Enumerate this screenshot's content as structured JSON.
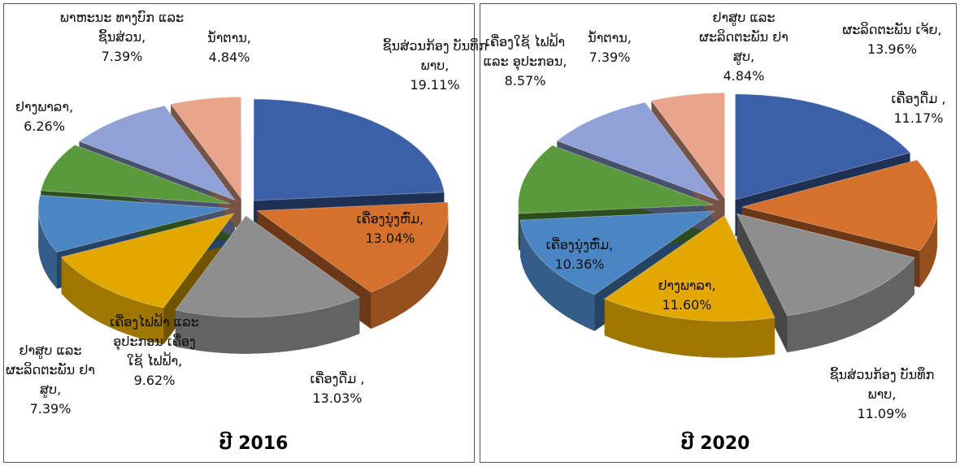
{
  "chart_data": [
    {
      "type": "pie3d",
      "title": "ປີ 2016",
      "categories": [
        "ຊິ້ນສ່ວນກ້ອງ ບັນທຶກພາບ,",
        "ເຄື່ອງນຸ່ງຫົ່ມ,",
        "ເຄື່ອງດື່ມ ,",
        "ເຄື່ອງໄຟຟ້າ ແລະ ອຸປະກອນ ເຄື່ອງໃຊ້ ໄຟຟ້າ,",
        "ຢາສູບ ແລະ ຜະລິດຕະພັນ ຢາສູບ,",
        "ຢາງພາລາ,",
        "ພາຫະນະ ທາງບົກ ແລະ ຊິ້ນສ່ວນ,",
        "ນ້ຳຕານ,"
      ],
      "values": [
        19.11,
        13.04,
        13.03,
        9.62,
        7.39,
        6.26,
        7.39,
        4.84
      ],
      "value_labels": [
        "19.11%",
        "13.04%",
        "13.03%",
        "9.62%",
        "7.39%",
        "6.26%",
        "7.39%",
        "4.84%"
      ],
      "colors": [
        "#3b60a8",
        "#d6712d",
        "#8e8e8e",
        "#e2a800",
        "#4a86c4",
        "#5a9a3c",
        "#8fa1d6",
        "#e9a58b"
      ]
    },
    {
      "type": "pie3d",
      "title": "ປີ 2020",
      "categories": [
        "ຜະລິດຕະພັນ ເຈ້ຍ,",
        "ເຄື່ອງດື່ມ ,",
        "ຊິ້ນສ່ວນກ້ອງ ບັນທຶກພາບ,",
        "ຢາງພາລາ,",
        "ເຄື່ອງນຸ່ງຫົ່ມ,",
        "ເຄື່ອງໃຊ້ ໄຟຟ້າ ແລະ ອຸປະກອນ,",
        "ນ້ຳຕານ,",
        "ຢາສູບ ແລະ ຜະລິດຕະພັນ ຢາສູບ,"
      ],
      "values": [
        13.96,
        11.17,
        11.09,
        11.6,
        10.36,
        8.57,
        7.39,
        4.84
      ],
      "value_labels": [
        "13.96%",
        "11.17%",
        "11.09%",
        "11.60%",
        "10.36%",
        "8.57%",
        "7.39%",
        "4.84%"
      ],
      "colors": [
        "#3b60a8",
        "#d6712d",
        "#8e8e8e",
        "#e2a800",
        "#4a86c4",
        "#5a9a3c",
        "#8fa1d6",
        "#e9a58b"
      ]
    }
  ]
}
